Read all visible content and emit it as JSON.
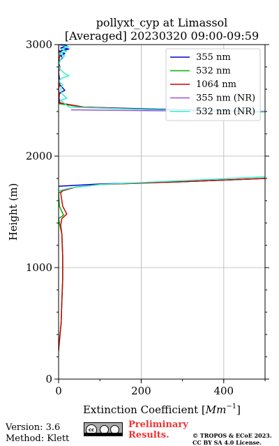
{
  "chart_data": {
    "type": "line",
    "title": "pollyxt_cyp at Limassol",
    "subtitle": "[Averaged] 20230320 09:00-09:59",
    "xlabel": "Extinction Coefficient [Mm⁻¹]",
    "xlabel_main": "Extinction Coefficient [",
    "xlabel_unit": "Mm",
    "xlabel_exp": "−1",
    "xlabel_close": "]",
    "ylabel": "Height (m)",
    "xlim": [
      0,
      500
    ],
    "ylim": [
      0,
      3000
    ],
    "xticks": [
      0,
      200,
      400
    ],
    "yticks": [
      0,
      1000,
      2000,
      3000
    ],
    "grid": true,
    "legend_position": "top-right",
    "series": [
      {
        "name": "355 nm",
        "color": "#0000cc",
        "points": [
          [
            0,
            3000
          ],
          [
            20,
            2990
          ],
          [
            5,
            2970
          ],
          [
            25,
            2960
          ],
          [
            0,
            2940
          ],
          [
            15,
            2920
          ],
          [
            5,
            2900
          ],
          [
            10,
            2880
          ],
          [
            0,
            2850
          ],
          [
            3,
            2800
          ],
          [
            0,
            2750
          ],
          [
            2,
            2700
          ],
          [
            0,
            2650
          ],
          [
            8,
            2620
          ],
          [
            15,
            2590
          ],
          [
            5,
            2570
          ],
          [
            0,
            2550
          ],
          [
            2,
            2500
          ],
          [
            0,
            2475
          ],
          [
            60,
            2440
          ],
          [
            200,
            2425
          ],
          [
            350,
            2410
          ],
          [
            500,
            2400
          ],
          [
            null,
            null
          ],
          [
            500,
            1800
          ],
          [
            300,
            1770
          ],
          [
            100,
            1750
          ],
          [
            0,
            1730
          ]
        ]
      },
      {
        "name": "532 nm",
        "color": "#00b000",
        "points": [
          [
            0,
            2470
          ],
          [
            60,
            2440
          ],
          [
            200,
            2420
          ],
          [
            350,
            2405
          ],
          [
            500,
            2395
          ],
          [
            null,
            null
          ],
          [
            500,
            1800
          ],
          [
            300,
            1770
          ],
          [
            100,
            1745
          ],
          [
            40,
            1720
          ],
          [
            10,
            1690
          ],
          [
            0,
            1670
          ],
          [
            2,
            1550
          ],
          [
            12,
            1470
          ],
          [
            0,
            1440
          ],
          [
            3,
            1380
          ],
          [
            8,
            1300
          ],
          [
            10,
            1100
          ],
          [
            10,
            900
          ],
          [
            8,
            700
          ],
          [
            6,
            500
          ],
          [
            4,
            420
          ],
          [
            0,
            300
          ]
        ]
      },
      {
        "name": "1064 nm",
        "color": "#cc0000",
        "points": [
          [
            0,
            2990
          ],
          [
            0,
            2960
          ],
          [
            3,
            2900
          ],
          [
            0,
            2850
          ],
          [
            2,
            2800
          ],
          [
            0,
            2750
          ],
          [
            0,
            2700
          ],
          [
            3,
            2650
          ],
          [
            0,
            2600
          ],
          [
            2,
            2550
          ],
          [
            0,
            2500
          ],
          [
            5,
            2475
          ],
          [
            60,
            2440
          ],
          [
            200,
            2420
          ],
          [
            350,
            2405
          ],
          [
            500,
            2395
          ],
          [
            null,
            null
          ],
          [
            500,
            1800
          ],
          [
            300,
            1770
          ],
          [
            100,
            1745
          ],
          [
            40,
            1720
          ],
          [
            10,
            1690
          ],
          [
            5,
            1670
          ],
          [
            10,
            1550
          ],
          [
            20,
            1480
          ],
          [
            8,
            1440
          ],
          [
            5,
            1380
          ],
          [
            8,
            1300
          ],
          [
            10,
            1100
          ],
          [
            10,
            900
          ],
          [
            8,
            700
          ],
          [
            6,
            500
          ],
          [
            4,
            420
          ],
          [
            0,
            250
          ]
        ]
      },
      {
        "name": "355 nm (NR)",
        "color": "#9955dd",
        "points": [
          [
            30,
            2415
          ],
          [
            150,
            2410
          ],
          [
            300,
            2405
          ],
          [
            500,
            2400
          ]
        ]
      },
      {
        "name": "532 nm (NR)",
        "color": "#33eecc",
        "points": [
          [
            10,
            2990
          ],
          [
            25,
            2980
          ],
          [
            5,
            2960
          ],
          [
            20,
            2940
          ],
          [
            0,
            2920
          ],
          [
            15,
            2900
          ],
          [
            5,
            2870
          ],
          [
            0,
            2820
          ],
          [
            3,
            2780
          ],
          [
            15,
            2740
          ],
          [
            25,
            2720
          ],
          [
            8,
            2700
          ],
          [
            0,
            2670
          ],
          [
            10,
            2640
          ],
          [
            5,
            2600
          ],
          [
            8,
            2560
          ],
          [
            20,
            2520
          ],
          [
            5,
            2500
          ],
          [
            25,
            2440
          ],
          [
            150,
            2425
          ],
          [
            300,
            2410
          ],
          [
            500,
            2395
          ],
          [
            null,
            null
          ],
          [
            500,
            1815
          ],
          [
            300,
            1780
          ],
          [
            100,
            1745
          ],
          [
            30,
            1715
          ],
          [
            0,
            1690
          ]
        ]
      }
    ]
  },
  "footer": {
    "version": "Version: 3.6",
    "method": "Method: Klett",
    "preliminary_line1": "Preliminary",
    "preliminary_line2": "Results.",
    "preliminary_color": "#ee3333",
    "copyright_line1": "© TROPOS & ECoE 2023.",
    "copyright_line2": "CC BY SA 4.0 License.",
    "cc_badge": "cc-by-sa-badge"
  }
}
